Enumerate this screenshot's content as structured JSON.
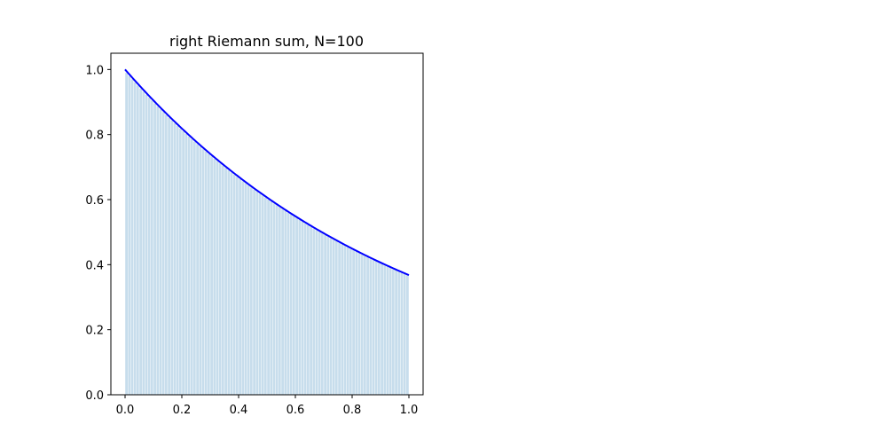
{
  "chart_data": {
    "type": "bar",
    "title": "right Riemann sum, N=100",
    "xlabel": "",
    "ylabel": "",
    "function": "exp(-x)",
    "interval": [
      0,
      1
    ],
    "n_rectangles": 100,
    "rule": "right",
    "xlim": [
      -0.05,
      1.05
    ],
    "ylim": [
      0.0,
      1.05
    ],
    "xticks": [
      0.0,
      0.2,
      0.4,
      0.6,
      0.8,
      1.0
    ],
    "xtick_labels": [
      "0.0",
      "0.2",
      "0.4",
      "0.6",
      "0.8",
      "1.0"
    ],
    "yticks": [
      0.0,
      0.2,
      0.4,
      0.6,
      0.8,
      1.0
    ],
    "ytick_labels": [
      "0.0",
      "0.2",
      "0.4",
      "0.6",
      "0.8",
      "1.0"
    ],
    "grid": false,
    "bar_color": "#1f77b4",
    "bar_alpha": 0.25,
    "bar_edge_color": "#ffffff",
    "curve_color": "#0000ff",
    "series": [
      {
        "x": [
          0.0,
          0.1,
          0.2,
          0.3,
          0.4,
          0.5,
          0.6,
          0.7,
          0.8,
          0.9,
          1.0
        ],
        "y": [
          1.0,
          0.905,
          0.819,
          0.741,
          0.67,
          0.607,
          0.549,
          0.497,
          0.449,
          0.407,
          0.368
        ]
      }
    ]
  }
}
